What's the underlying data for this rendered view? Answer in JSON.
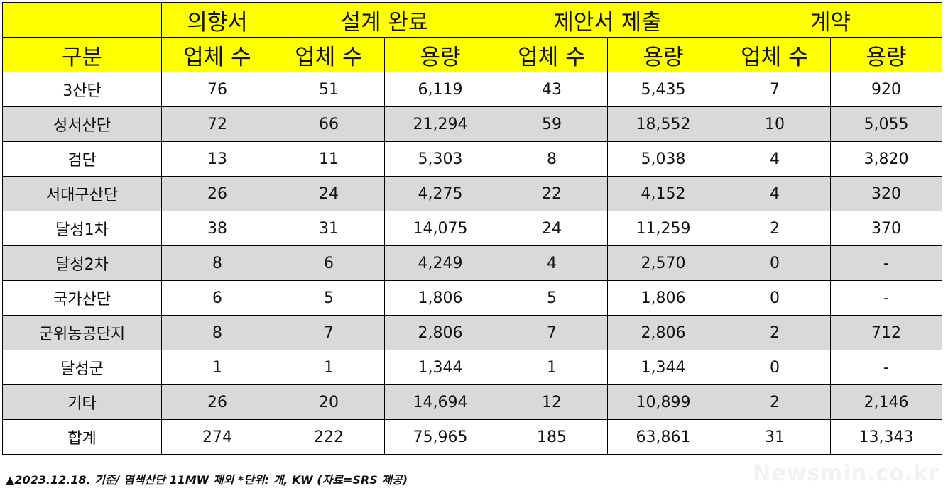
{
  "header": {
    "groups": [
      "",
      "의향서",
      "설계 완료",
      "제안서 제출",
      "계약"
    ],
    "subheaders": [
      "구분",
      "업체 수",
      "업체 수",
      "용량",
      "업체 수",
      "용량",
      "업체 수",
      "용량"
    ]
  },
  "rows": [
    [
      "3산단",
      "76",
      "51",
      "6,119",
      "43",
      "5,435",
      "7",
      "920"
    ],
    [
      "성서산단",
      "72",
      "66",
      "21,294",
      "59",
      "18,552",
      "10",
      "5,055"
    ],
    [
      "검단",
      "13",
      "11",
      "5,303",
      "8",
      "5,038",
      "4",
      "3,820"
    ],
    [
      "서대구산단",
      "26",
      "24",
      "4,275",
      "22",
      "4,152",
      "4",
      "320"
    ],
    [
      "달성1차",
      "38",
      "31",
      "14,075",
      "24",
      "11,259",
      "2",
      "370"
    ],
    [
      "달성2차",
      "8",
      "6",
      "4,249",
      "4",
      "2,570",
      "0",
      "-"
    ],
    [
      "국가산단",
      "6",
      "5",
      "1,806",
      "5",
      "1,806",
      "0",
      "-"
    ],
    [
      "군위농공단지",
      "8",
      "7",
      "2,806",
      "7",
      "2,806",
      "2",
      "712"
    ],
    [
      "달성군",
      "1",
      "1",
      "1,344",
      "1",
      "1,344",
      "0",
      "-"
    ],
    [
      "기타",
      "26",
      "20",
      "14,694",
      "12",
      "10,899",
      "2",
      "2,146"
    ],
    [
      "합계",
      "274",
      "222",
      "75,965",
      "185",
      "63,861",
      "31",
      "13,343"
    ]
  ],
  "footnote": "▲2023.12.18. 기준/ 염색산단 11MW 제외 *단위: 개, KW  (자료=SRS 제공)",
  "watermark": "Newsmin.co.kr",
  "colors": {
    "header_bg": "#ffff00",
    "alt_row_bg": "#d9d9d9"
  }
}
